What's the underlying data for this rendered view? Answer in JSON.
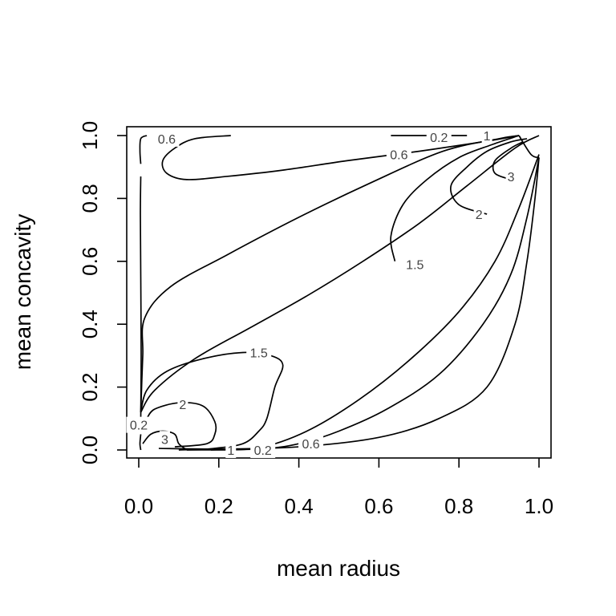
{
  "chart_data": {
    "type": "contour",
    "title": "",
    "xlabel": "mean radius",
    "ylabel": "mean concavity",
    "xlim": [
      0.0,
      1.0
    ],
    "ylim": [
      0.0,
      1.0
    ],
    "x_ticks": [
      "0.0",
      "0.2",
      "0.4",
      "0.6",
      "0.8",
      "1.0"
    ],
    "y_ticks": [
      "0.0",
      "0.2",
      "0.4",
      "0.6",
      "0.8",
      "1.0"
    ],
    "grid": false,
    "legend": "none",
    "contours": [
      {
        "level": "0.2",
        "points": [
          [
            0.05,
            0.005
          ],
          [
            0.2,
            0.003
          ],
          [
            0.4,
            0.01
          ],
          [
            0.6,
            0.04
          ],
          [
            0.75,
            0.1
          ],
          [
            0.87,
            0.2
          ],
          [
            0.94,
            0.4
          ],
          [
            0.97,
            0.6
          ],
          [
            0.99,
            0.8
          ],
          [
            1.0,
            0.93
          ]
        ]
      },
      {
        "level": "0.6",
        "points": [
          [
            0.12,
            0.0
          ],
          [
            0.3,
            0.003
          ],
          [
            0.4,
            0.02
          ],
          [
            0.5,
            0.06
          ],
          [
            0.62,
            0.13
          ],
          [
            0.75,
            0.24
          ],
          [
            0.86,
            0.4
          ],
          [
            0.93,
            0.56
          ],
          [
            0.97,
            0.74
          ],
          [
            1.0,
            0.93
          ]
        ]
      },
      {
        "level": "1",
        "points": [
          [
            0.18,
            0.0
          ],
          [
            0.3,
            0.007
          ],
          [
            0.42,
            0.06
          ],
          [
            0.55,
            0.16
          ],
          [
            0.68,
            0.29
          ],
          [
            0.8,
            0.44
          ],
          [
            0.89,
            0.6
          ],
          [
            0.95,
            0.77
          ],
          [
            1.0,
            0.94
          ]
        ]
      },
      {
        "level": "1.5",
        "points": [
          [
            0.1,
            0.0
          ],
          [
            0.18,
            0.004
          ],
          [
            0.26,
            0.02
          ],
          [
            0.3,
            0.06
          ],
          [
            0.32,
            0.1
          ],
          [
            0.34,
            0.2
          ],
          [
            0.36,
            0.27
          ],
          [
            0.33,
            0.3
          ],
          [
            0.26,
            0.31
          ],
          [
            0.16,
            0.29
          ],
          [
            0.07,
            0.25
          ],
          [
            0.02,
            0.19
          ],
          [
            0.005,
            0.12
          ]
        ]
      },
      {
        "level": "2",
        "points": [
          [
            0.09,
            0.01
          ],
          [
            0.17,
            0.02
          ],
          [
            0.19,
            0.05
          ],
          [
            0.19,
            0.09
          ],
          [
            0.16,
            0.14
          ],
          [
            0.1,
            0.15
          ],
          [
            0.04,
            0.13
          ],
          [
            0.02,
            0.1
          ]
        ]
      },
      {
        "level": "3",
        "points": [
          [
            0.01,
            0.02
          ],
          [
            0.03,
            0.05
          ],
          [
            0.06,
            0.06
          ],
          [
            0.09,
            0.05
          ],
          [
            0.1,
            0.02
          ],
          [
            0.12,
            0.0
          ]
        ]
      },
      {
        "level": "0.2",
        "points": [
          [
            0.005,
            0.05
          ],
          [
            0.003,
            0.02
          ],
          [
            0.005,
            0.0
          ]
        ]
      },
      {
        "level": "1.5",
        "points": [
          [
            0.64,
            0.6
          ],
          [
            0.63,
            0.68
          ],
          [
            0.66,
            0.78
          ],
          [
            0.72,
            0.86
          ],
          [
            0.8,
            0.93
          ],
          [
            0.88,
            0.97
          ],
          [
            0.95,
            1.0
          ]
        ]
      },
      {
        "level": "2",
        "points": [
          [
            0.87,
            0.75
          ],
          [
            0.8,
            0.78
          ],
          [
            0.78,
            0.84
          ],
          [
            0.82,
            0.9
          ],
          [
            0.87,
            0.95
          ],
          [
            0.93,
            0.98
          ],
          [
            0.97,
            0.99
          ]
        ]
      },
      {
        "level": "3",
        "points": [
          [
            0.93,
            0.86
          ],
          [
            0.89,
            0.88
          ],
          [
            0.89,
            0.92
          ],
          [
            0.93,
            0.96
          ],
          [
            0.96,
            0.98
          ]
        ]
      },
      {
        "level": "1",
        "points": [
          [
            0.95,
            1.0
          ],
          [
            0.98,
            0.94
          ],
          [
            1.0,
            0.93
          ]
        ]
      },
      {
        "level": "0.6",
        "points": [
          [
            0.005,
            0.1
          ],
          [
            0.006,
            0.3
          ],
          [
            0.005,
            0.55
          ],
          [
            0.004,
            0.75
          ],
          [
            0.005,
            0.87
          ]
        ]
      },
      {
        "level": "1",
        "points": [
          [
            0.005,
            0.12
          ],
          [
            0.01,
            0.3
          ],
          [
            0.015,
            0.42
          ],
          [
            0.08,
            0.52
          ],
          [
            0.22,
            0.62
          ],
          [
            0.4,
            0.74
          ],
          [
            0.58,
            0.85
          ],
          [
            0.76,
            0.95
          ],
          [
            0.9,
            0.99
          ],
          [
            0.95,
            1.0
          ]
        ]
      },
      {
        "level": "1.5",
        "points": [
          [
            0.005,
            0.12
          ],
          [
            0.04,
            0.19
          ],
          [
            0.14,
            0.29
          ],
          [
            0.28,
            0.39
          ],
          [
            0.42,
            0.49
          ],
          [
            0.56,
            0.6
          ],
          [
            0.7,
            0.72
          ],
          [
            0.82,
            0.84
          ],
          [
            0.94,
            0.96
          ],
          [
            1.0,
            1.0
          ]
        ]
      },
      {
        "level": "0.6",
        "points": [
          [
            0.23,
            1.0
          ],
          [
            0.14,
            0.99
          ],
          [
            0.09,
            0.96
          ],
          [
            0.06,
            0.92
          ],
          [
            0.07,
            0.88
          ],
          [
            0.12,
            0.86
          ],
          [
            0.22,
            0.87
          ],
          [
            0.36,
            0.89
          ],
          [
            0.52,
            0.92
          ],
          [
            0.7,
            0.95
          ],
          [
            0.86,
            0.98
          ],
          [
            0.95,
            1.0
          ]
        ]
      },
      {
        "level": "0.2",
        "points": [
          [
            0.005,
            0.91
          ],
          [
            0.003,
            0.95
          ],
          [
            0.005,
            0.99
          ],
          [
            0.02,
            1.0
          ]
        ]
      },
      {
        "level": "0.2",
        "points": [
          [
            0.63,
            1.0
          ],
          [
            0.82,
            1.0
          ]
        ]
      }
    ],
    "contour_labels": [
      {
        "text": "0.6",
        "x": 0.07,
        "y": 0.99
      },
      {
        "text": "0.2",
        "x": 0.75,
        "y": 0.995
      },
      {
        "text": "1",
        "x": 0.87,
        "y": 1.0
      },
      {
        "text": "0.6",
        "x": 0.65,
        "y": 0.94
      },
      {
        "text": "3",
        "x": 0.93,
        "y": 0.87
      },
      {
        "text": "2",
        "x": 0.85,
        "y": 0.75
      },
      {
        "text": "1.5",
        "x": 0.69,
        "y": 0.59
      },
      {
        "text": "1.5",
        "x": 0.3,
        "y": 0.31
      },
      {
        "text": "2",
        "x": 0.11,
        "y": 0.145
      },
      {
        "text": "0.2",
        "x": 0.0,
        "y": 0.08
      },
      {
        "text": "3",
        "x": 0.065,
        "y": 0.035
      },
      {
        "text": "1",
        "x": 0.23,
        "y": 0.0
      },
      {
        "text": "0.2",
        "x": 0.31,
        "y": 0.0
      },
      {
        "text": "0.6",
        "x": 0.43,
        "y": 0.02
      }
    ]
  }
}
